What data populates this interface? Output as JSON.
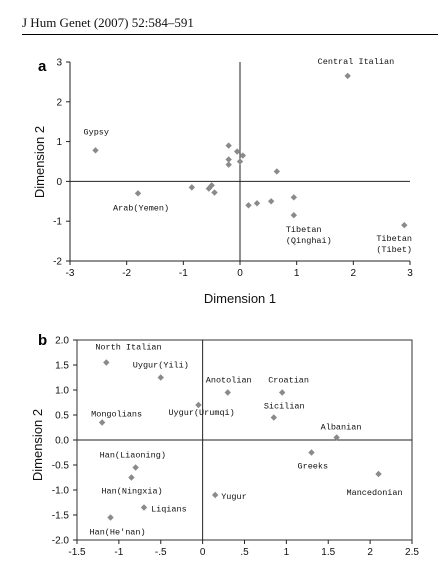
{
  "header": {
    "citation": "J Hum Genet (2007) 52:584–591"
  },
  "chart_data": [
    {
      "panel_label": "a",
      "type": "scatter",
      "xlabel": "Dimension 1",
      "ylabel": "Dimension 2",
      "xlim": [
        -3,
        3
      ],
      "ylim": [
        -2,
        3
      ],
      "xticks": [
        -3,
        -2,
        -1,
        0,
        1,
        2,
        3
      ],
      "yticks": [
        -2,
        -1,
        0,
        1,
        2,
        3
      ],
      "points": [
        {
          "x": 1.9,
          "y": 2.65,
          "label": "Central Italian"
        },
        {
          "x": -2.55,
          "y": 0.78,
          "label": "Gypsy"
        },
        {
          "x": -1.8,
          "y": -0.3,
          "label": "Arab(Yemen)"
        },
        {
          "x": 0.95,
          "y": -0.85,
          "label": "Tibetan (Qinghai)"
        },
        {
          "x": 2.9,
          "y": -1.1,
          "label": "Tibetan (Tibet)"
        },
        {
          "x": -0.2,
          "y": 0.9,
          "label": ""
        },
        {
          "x": -0.05,
          "y": 0.75,
          "label": ""
        },
        {
          "x": 0.05,
          "y": 0.65,
          "label": ""
        },
        {
          "x": -0.2,
          "y": 0.55,
          "label": ""
        },
        {
          "x": 0.0,
          "y": 0.5,
          "label": ""
        },
        {
          "x": -0.2,
          "y": 0.42,
          "label": ""
        },
        {
          "x": 0.65,
          "y": 0.25,
          "label": ""
        },
        {
          "x": -0.85,
          "y": -0.15,
          "label": ""
        },
        {
          "x": -0.55,
          "y": -0.18,
          "label": ""
        },
        {
          "x": -0.45,
          "y": -0.28,
          "label": ""
        },
        {
          "x": -0.5,
          "y": -0.1,
          "label": ""
        },
        {
          "x": 0.15,
          "y": -0.6,
          "label": ""
        },
        {
          "x": 0.3,
          "y": -0.55,
          "label": ""
        },
        {
          "x": 0.55,
          "y": -0.5,
          "label": ""
        },
        {
          "x": 0.95,
          "y": -0.4,
          "label": ""
        }
      ]
    },
    {
      "panel_label": "b",
      "type": "scatter",
      "xlabel": "",
      "ylabel": "Dimension 2",
      "xlim": [
        -1.5,
        2.5
      ],
      "ylim": [
        -2.0,
        2.0
      ],
      "xticks": [
        -1.5,
        -1.0,
        -0.5,
        0.0,
        0.5,
        1.0,
        1.5,
        2.0,
        2.5
      ],
      "yticks": [
        -2.0,
        -1.5,
        -1.0,
        -0.5,
        0.0,
        0.5,
        1.0,
        1.5,
        2.0
      ],
      "xtick_labels": [
        "-1.5",
        "-1",
        "-.5",
        "0",
        ".5",
        "1",
        "1.5",
        "2",
        "2.5"
      ],
      "ytick_labels": [
        "-2.0",
        "-1.5",
        "-1.0",
        "-0.5",
        "0.0",
        "0.5",
        "1.0",
        "1.5",
        "2.0"
      ],
      "points": [
        {
          "x": -1.15,
          "y": 1.55,
          "label": "North Italian"
        },
        {
          "x": -0.5,
          "y": 1.25,
          "label": "Uygur(Yili)"
        },
        {
          "x": 0.3,
          "y": 0.95,
          "label": "Anotolian"
        },
        {
          "x": 0.95,
          "y": 0.95,
          "label": "Croatian"
        },
        {
          "x": -1.2,
          "y": 0.35,
          "label": "Mongolians"
        },
        {
          "x": -0.05,
          "y": 0.7,
          "label": "Uygur(Urumqi)"
        },
        {
          "x": 0.85,
          "y": 0.45,
          "label": "Sicilian"
        },
        {
          "x": 1.6,
          "y": 0.05,
          "label": "Albanian"
        },
        {
          "x": -0.8,
          "y": -0.55,
          "label": "Han(Liaoning)"
        },
        {
          "x": 1.3,
          "y": -0.25,
          "label": "Greeks"
        },
        {
          "x": -0.85,
          "y": -0.75,
          "label": "Han(Ningxia)"
        },
        {
          "x": 2.1,
          "y": -0.68,
          "label": "Mancedonian"
        },
        {
          "x": 0.15,
          "y": -1.1,
          "label": "Yugur"
        },
        {
          "x": -0.7,
          "y": -1.35,
          "label": "Liqians"
        },
        {
          "x": -1.1,
          "y": -1.55,
          "label": "Han(He'nan)"
        }
      ]
    }
  ]
}
